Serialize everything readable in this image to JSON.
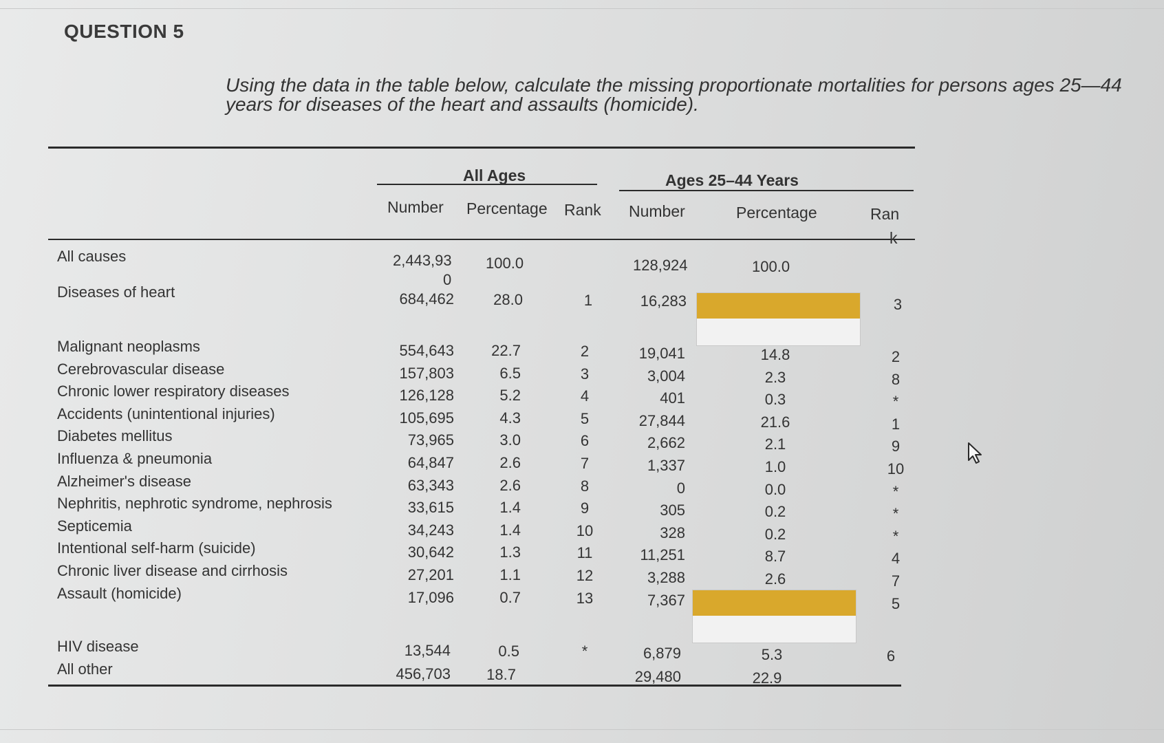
{
  "question_title": "QUESTION 5",
  "instruction": "Using the data in the table below, calculate the missing proportionate mortalities for persons ages 25—44 years for diseases of the heart and assaults (homicide).",
  "table": {
    "groups": {
      "all_ages": "All Ages",
      "ages_25_44": "Ages 25–44 Years"
    },
    "columns": {
      "all_number": "Number",
      "all_percentage": "Percentage",
      "all_rank": "Rank",
      "age_number": "Number",
      "age_percentage": "Percentage",
      "age_rank_a": "Ran",
      "age_rank_b": "k"
    },
    "all_causes": {
      "label": "All causes",
      "number_a": "2,443,93",
      "number_b": "0",
      "pct": "100.0",
      "age_number": "128,924",
      "age_pct": "100.0"
    },
    "heart": {
      "label": "Diseases of heart",
      "number": "684,462",
      "pct": "28.0",
      "rank": "1",
      "age_number": "16,283",
      "age_pct": "",
      "age_rank": "3"
    },
    "rows": [
      {
        "label": "Malignant neoplasms",
        "number": "554,643",
        "pct": "22.7",
        "rank": "2",
        "age_number": "19,041",
        "age_pct": "14.8",
        "age_rank": "2"
      },
      {
        "label": "Cerebrovascular disease",
        "number": "157,803",
        "pct": "6.5",
        "rank": "3",
        "age_number": "3,004",
        "age_pct": "2.3",
        "age_rank": "8"
      },
      {
        "label": "Chronic lower respiratory diseases",
        "number": "126,128",
        "pct": "5.2",
        "rank": "4",
        "age_number": "401",
        "age_pct": "0.3",
        "age_rank": "*"
      },
      {
        "label": "Accidents (unintentional injuries)",
        "number": "105,695",
        "pct": "4.3",
        "rank": "5",
        "age_number": "27,844",
        "age_pct": "21.6",
        "age_rank": "1"
      },
      {
        "label": "Diabetes mellitus",
        "number": "73,965",
        "pct": "3.0",
        "rank": "6",
        "age_number": "2,662",
        "age_pct": "2.1",
        "age_rank": "9"
      },
      {
        "label": "Influenza & pneumonia",
        "number": "64,847",
        "pct": "2.6",
        "rank": "7",
        "age_number": "1,337",
        "age_pct": "1.0",
        "age_rank": "10"
      },
      {
        "label": "Alzheimer's disease",
        "number": "63,343",
        "pct": "2.6",
        "rank": "8",
        "age_number": "0",
        "age_pct": "0.0",
        "age_rank": "*"
      },
      {
        "label": "Nephritis, nephrotic syndrome, nephrosis",
        "number": "33,615",
        "pct": "1.4",
        "rank": "9",
        "age_number": "305",
        "age_pct": "0.2",
        "age_rank": "*"
      },
      {
        "label": "Septicemia",
        "number": "34,243",
        "pct": "1.4",
        "rank": "10",
        "age_number": "328",
        "age_pct": "0.2",
        "age_rank": "*"
      },
      {
        "label": "Intentional self-harm (suicide)",
        "number": "30,642",
        "pct": "1.3",
        "rank": "11",
        "age_number": "11,251",
        "age_pct": "8.7",
        "age_rank": "4"
      },
      {
        "label": "Chronic liver disease and cirrhosis",
        "number": "27,201",
        "pct": "1.1",
        "rank": "12",
        "age_number": "3,288",
        "age_pct": "2.6",
        "age_rank": "7"
      },
      {
        "label": "Assault (homicide)",
        "number": "17,096",
        "pct": "0.7",
        "rank": "13",
        "age_number": "7,367",
        "age_pct": "",
        "age_rank": "5"
      }
    ],
    "hiv": {
      "label": "HIV disease",
      "number": "13,544",
      "pct": "0.5",
      "rank": "*",
      "age_number": "6,879",
      "age_pct": "5.3",
      "age_rank": "6"
    },
    "other": {
      "label": "All other",
      "number": "456,703",
      "pct": "18.7",
      "age_number": "29,480",
      "age_pct": "22.9"
    }
  },
  "colors": {
    "answer_highlight": "#d9a82c",
    "background": "#dedfdf",
    "text": "#333333"
  },
  "icons": {
    "cursor": "mouse-pointer-icon"
  }
}
